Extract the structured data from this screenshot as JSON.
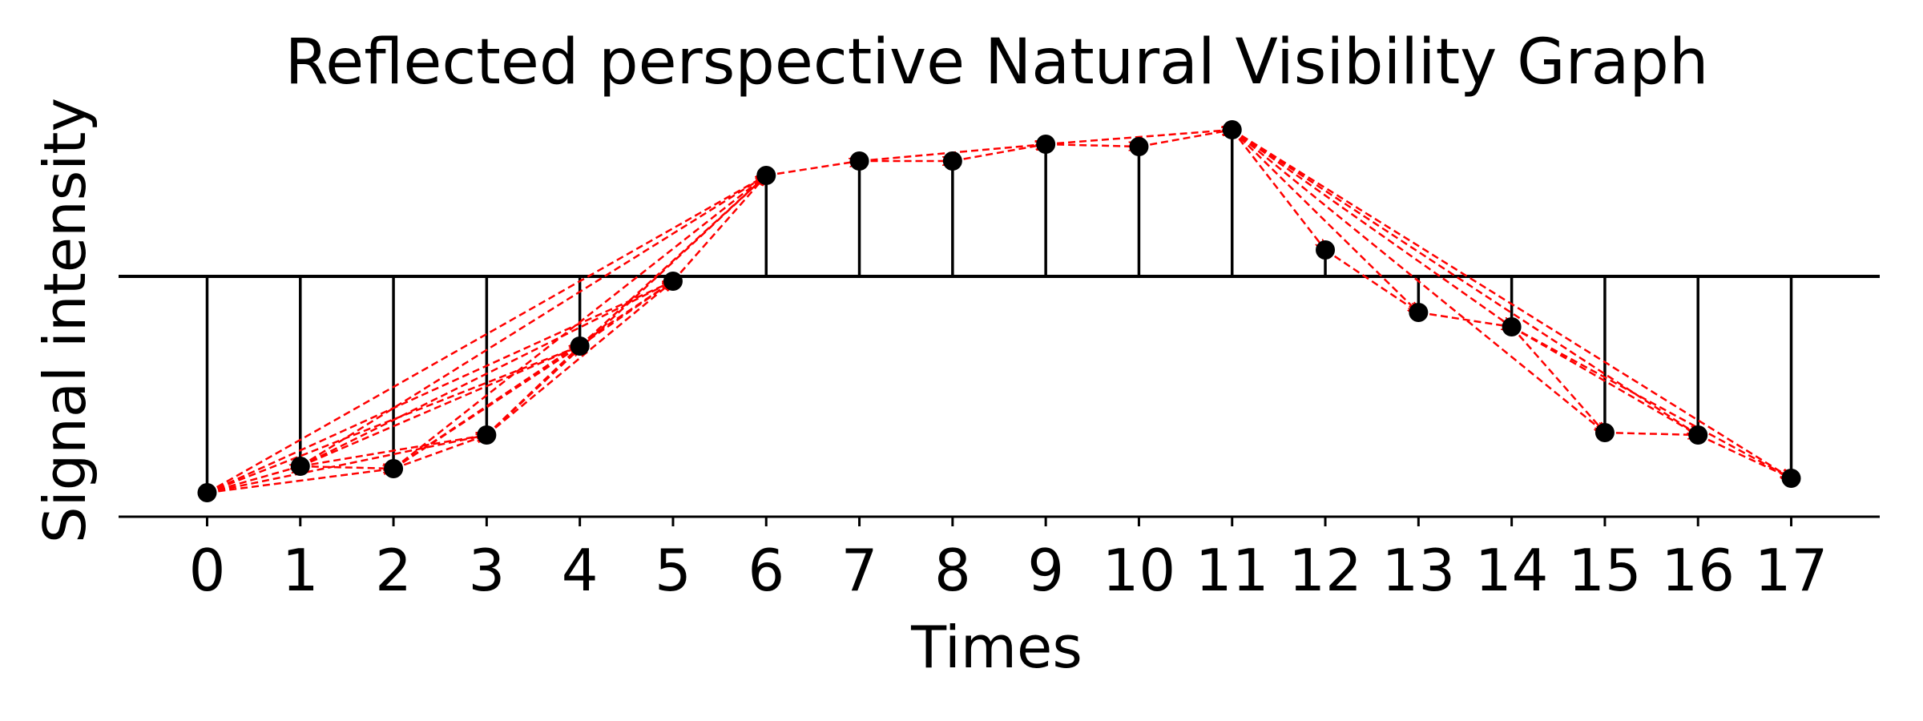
{
  "chart_data": {
    "type": "scatter",
    "title": "Reflected perspective Natural Visibility Graph",
    "xlabel": "Times",
    "ylabel": "Signal intensity",
    "x": [
      0,
      1,
      2,
      3,
      4,
      5,
      6,
      7,
      8,
      9,
      10,
      11,
      12,
      13,
      14,
      15,
      16,
      17
    ],
    "y": [
      -0.9,
      -0.79,
      -0.8,
      -0.66,
      -0.29,
      -0.02,
      0.42,
      0.48,
      0.48,
      0.55,
      0.54,
      0.61,
      0.11,
      -0.15,
      -0.21,
      -0.65,
      -0.66,
      -0.84
    ],
    "xlim": [
      -0.95,
      17.95
    ],
    "ylim": [
      -1.0,
      0.65
    ],
    "baseline": 0,
    "xticks": [
      "0",
      "1",
      "2",
      "3",
      "4",
      "5",
      "6",
      "7",
      "8",
      "9",
      "10",
      "11",
      "12",
      "13",
      "14",
      "15",
      "16",
      "17"
    ],
    "grid": false,
    "point_color": "#000000",
    "stem_color": "#000000",
    "edge_color": "#ff0000",
    "edges": [
      [
        0,
        1
      ],
      [
        0,
        2
      ],
      [
        0,
        3
      ],
      [
        0,
        4
      ],
      [
        0,
        5
      ],
      [
        0,
        6
      ],
      [
        1,
        2
      ],
      [
        1,
        3
      ],
      [
        1,
        4
      ],
      [
        1,
        5
      ],
      [
        1,
        6
      ],
      [
        2,
        3
      ],
      [
        2,
        4
      ],
      [
        2,
        5
      ],
      [
        2,
        6
      ],
      [
        3,
        4
      ],
      [
        3,
        5
      ],
      [
        3,
        6
      ],
      [
        4,
        5
      ],
      [
        4,
        6
      ],
      [
        5,
        6
      ],
      [
        6,
        7
      ],
      [
        7,
        8
      ],
      [
        7,
        9
      ],
      [
        8,
        9
      ],
      [
        9,
        10
      ],
      [
        9,
        11
      ],
      [
        10,
        11
      ],
      [
        11,
        12
      ],
      [
        11,
        13
      ],
      [
        11,
        14
      ],
      [
        11,
        15
      ],
      [
        11,
        16
      ],
      [
        11,
        17
      ],
      [
        12,
        13
      ],
      [
        13,
        14
      ],
      [
        14,
        15
      ],
      [
        14,
        16
      ],
      [
        14,
        17
      ],
      [
        15,
        16
      ],
      [
        16,
        17
      ]
    ]
  }
}
